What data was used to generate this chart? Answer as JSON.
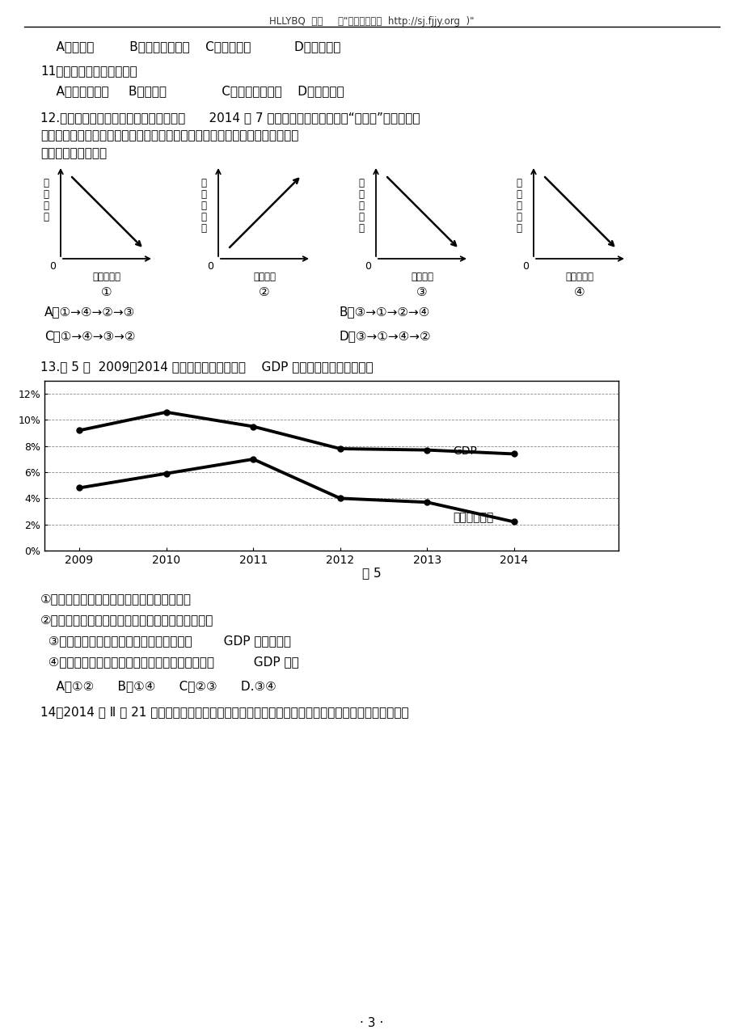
{
  "header_text": "HLLYBQ  整理     供\"高中试卷网（  http://sj.fjjy.org  )\"",
  "line10_answers": "    A．纬度低         B．位于半湿润区    C．山脉阻挡           D．黄土覆盖",
  "q11": "11．与中游相比，该段黄河",
  "q11_answers": "    A．有凌汛现象     B．落差大              C．水土流失严重    D．含沙量大",
  "q12_text1": "12.牛羊肉是老百姓餐桌上的常见食品，自      2014 年 7 月以来，曾一度被高捎的“杨贵妃”受市场供应",
  "q12_text2": "充足影响，价格持续下降，而牛肉供给基本稳定。在不考虑其他因素情况下，下",
  "q12_text3": "列传导过程正确的是",
  "graph_labels": [
    "①",
    "②",
    "③",
    "④"
  ],
  "graph1_ylabel": "羊肉价格",
  "graph1_xlabel": "羊肉需求量",
  "graph2_ylabel": "牛肉需求量",
  "graph2_xlabel": "牛肉价格",
  "graph3_ylabel": "羊肉供给量",
  "graph3_xlabel": "羊肉价格",
  "graph4_ylabel": "牛肉需求量",
  "graph4_xlabel": "牛肉需求量",
  "q12_opt_A": "A．①→④→②→③",
  "q12_opt_B": "B．③→①→②→④",
  "q12_opt_C": "C．①→④→③→②",
  "q12_opt_D": "D．③→①→④→②",
  "q13_text": "13.图 5 是  2009－2014 年我国一次能源消费及    GDP 增速，从图中可以推断出",
  "chart_years": [
    2009,
    2010,
    2011,
    2012,
    2013,
    2014
  ],
  "gdp_data": [
    9.2,
    10.6,
    9.5,
    7.8,
    7.7,
    7.4
  ],
  "energy_data": [
    4.8,
    5.9,
    7.0,
    4.0,
    3.7,
    2.2
  ],
  "fig5_caption": "图 5",
  "q13_item1": "①我国一次能源消费增速随着经济发展而变化",
  "q13_item2": "②我国一次能源消费量的不断减少制约了经济的发展",
  "q13_item3": "  ③能源结构的优化使一次能源的消费量随着        GDP 增长而减少",
  "q13_item4": "  ④节能碳排的力度加大使一次能源消费的增速低于          GDP 增速",
  "q13_opts": "    A．①②      B．①④      C．②③      D.③④",
  "q14_text": "14．2014 年 Ⅱ 月 21 日，中国人民銀行宣布从次日起下调金融机构人民币贷款和存款基准利率。値得",
  "page_num": "· 3 ·"
}
